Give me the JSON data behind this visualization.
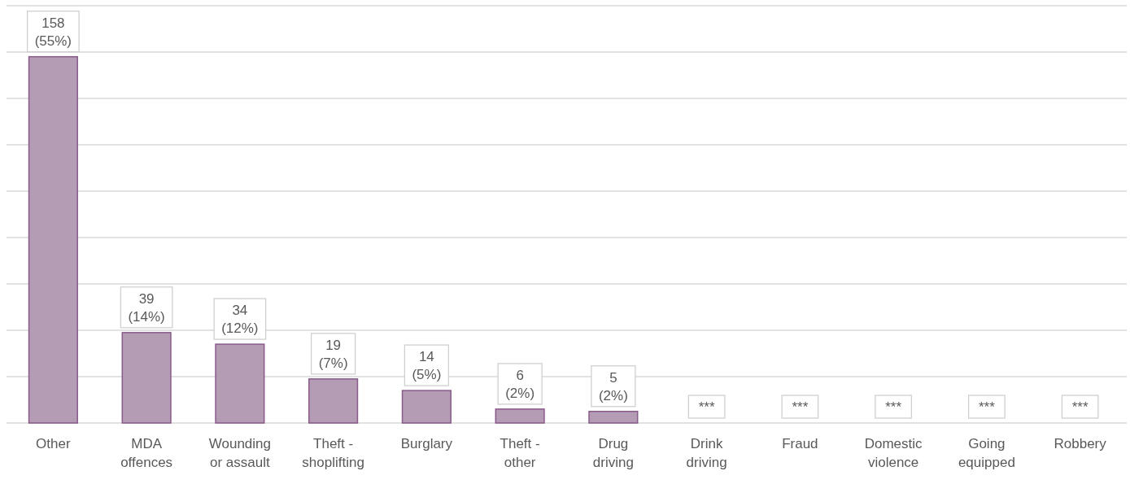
{
  "chart_data": {
    "type": "bar",
    "categories": [
      "Other",
      "MDA\noffences",
      "Wounding\nor assault",
      "Theft -\nshoplifting",
      "Burglary",
      "Theft -\nother",
      "Drug\ndriving",
      "Drink\ndriving",
      "Fraud",
      "Domestic\nviolence",
      "Going\nequipped",
      "Robbery"
    ],
    "values": [
      158,
      39,
      34,
      19,
      14,
      6,
      5,
      null,
      null,
      null,
      null,
      null
    ],
    "value_labels": [
      "158\n(55%)",
      "39\n(14%)",
      "34\n(12%)",
      "19\n(7%)",
      "14\n(5%)",
      "6\n(2%)",
      "5\n(2%)",
      "***",
      "***",
      "***",
      "***",
      "***"
    ],
    "color": "#b49cb5",
    "ylim": [
      0,
      180
    ],
    "yticks": [
      {
        "value": 0,
        "label": null
      },
      {
        "value": 20,
        "label": null
      },
      {
        "value": 40,
        "label": null
      },
      {
        "value": 60,
        "label": null
      },
      {
        "value": 80,
        "label": null
      },
      {
        "value": 100,
        "label": null
      },
      {
        "value": 120,
        "label": null
      },
      {
        "value": 140,
        "label": null
      },
      {
        "value": 160,
        "label": null
      },
      {
        "value": 180,
        "label": null
      }
    ],
    "tick_labels": "x",
    "grid": "y"
  }
}
